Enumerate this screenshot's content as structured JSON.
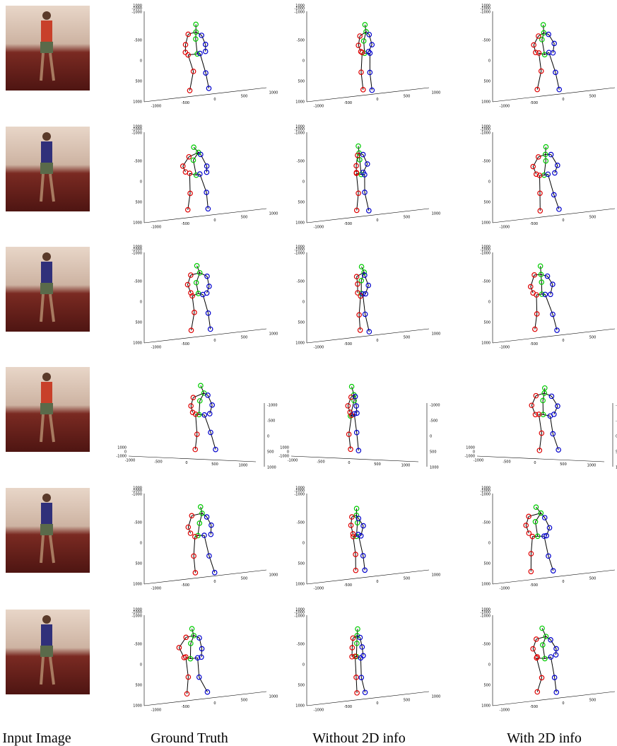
{
  "figure": {
    "columns": [
      "Input Image",
      "Ground Truth",
      "Without 2D info",
      "With 2D info"
    ],
    "rows": [
      {
        "ticks": {
          "vertical": [
            "1000",
            "-1000",
            "-1000",
            "-500",
            "0",
            "500",
            "1000"
          ],
          "bottom": [
            "-1000",
            "-500",
            "0",
            "500",
            "1000"
          ]
        }
      },
      {
        "ticks": {
          "vertical": [
            "1000",
            "-1000",
            "-1000",
            "-500",
            "0",
            "500",
            "1000"
          ],
          "bottom": [
            "-1000",
            "-500",
            "0",
            "500",
            "1000"
          ]
        }
      },
      {
        "ticks": {
          "vertical": [
            "1000",
            "-1000",
            "-1000",
            "-500",
            "0",
            "500",
            "1000"
          ],
          "bottom": [
            "-1000",
            "-500",
            "0",
            "500",
            "1000"
          ]
        }
      },
      {
        "ticks": {
          "left": [
            "1000",
            "0",
            "-1000"
          ],
          "right": [
            "-1000",
            "-500",
            "0",
            "500",
            "1000"
          ],
          "bottom": [
            "-1000",
            "-500",
            "0",
            "500",
            "1000"
          ]
        }
      },
      {
        "ticks": {
          "vertical": [
            "1000",
            "-1000",
            "-1000",
            "-500",
            "0",
            "500",
            "1000"
          ],
          "bottom": [
            "-1000",
            "-500",
            "0",
            "500",
            "1000"
          ]
        }
      },
      {
        "ticks": {
          "vertical": [
            "1000",
            "-1000",
            "-1000",
            "-500",
            "0",
            "500",
            "1000"
          ],
          "bottom": [
            "-1000",
            "-500",
            "0",
            "500",
            "1000"
          ]
        }
      }
    ]
  }
}
